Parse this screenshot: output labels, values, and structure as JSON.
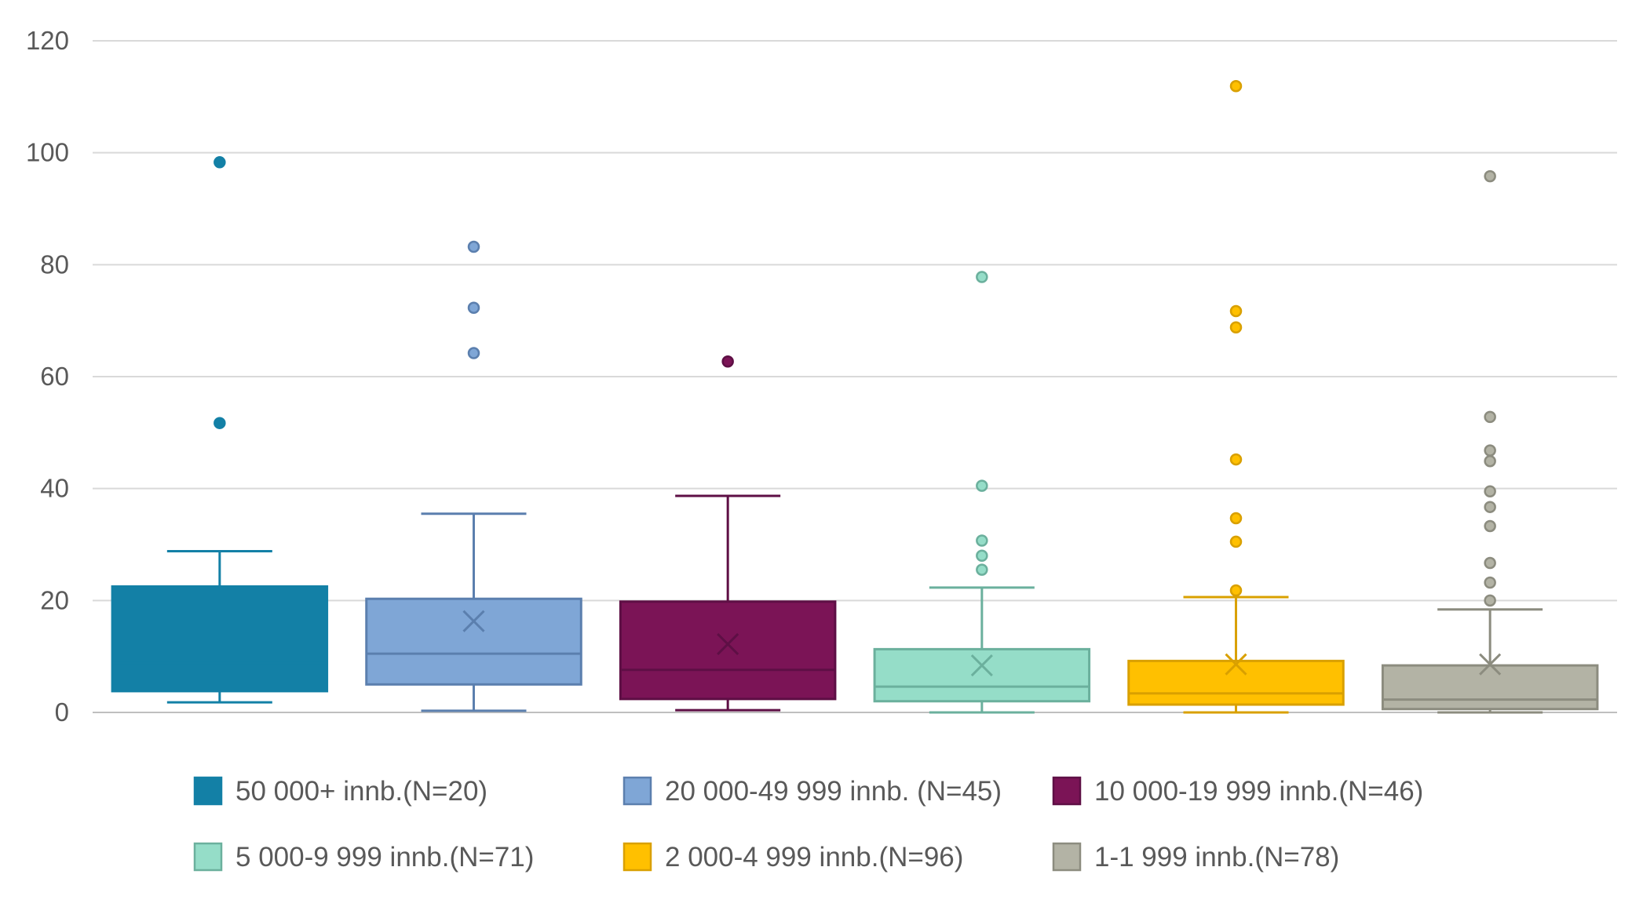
{
  "chart_data": {
    "type": "boxplot",
    "title": "",
    "xlabel": "",
    "ylabel": "",
    "ylim": [
      0,
      120
    ],
    "y_ticks": [
      0,
      20,
      40,
      60,
      80,
      100,
      120
    ],
    "y_tick_labels": [
      "0",
      "20",
      "40",
      "60",
      "80",
      "100",
      "120"
    ],
    "grid": "horizontal",
    "legend_position": "bottom",
    "series": [
      {
        "name": "50 000+ innb.(N=20)",
        "color": "#1380A6",
        "fill": "#1380A6",
        "whisker_low": 1.8,
        "q1": 3.8,
        "median": 8.8,
        "q3": 22.5,
        "whisker_high": 28.8,
        "mean": 17.6,
        "outliers": [
          51.7,
          98.3
        ]
      },
      {
        "name": "20 000-49 999 innb. (N=45)",
        "color": "#5B7FAE",
        "fill": "#7FA6D6",
        "whisker_low": 0.3,
        "q1": 5.0,
        "median": 10.5,
        "q3": 20.3,
        "whisker_high": 35.5,
        "mean": 16.3,
        "outliers": [
          64.2,
          72.3,
          83.2
        ]
      },
      {
        "name": "10 000-19 999 innb.(N=46)",
        "color": "#5E0F45",
        "fill": "#7B1456",
        "whisker_low": 0.4,
        "q1": 2.4,
        "median": 7.6,
        "q3": 19.8,
        "whisker_high": 38.7,
        "mean": 12.2,
        "outliers": [
          62.7
        ]
      },
      {
        "name": "5 000-9 999 innb.(N=71)",
        "color": "#6BB09D",
        "fill": "#95DDC8",
        "whisker_low": 0.0,
        "q1": 2.0,
        "median": 4.6,
        "q3": 11.3,
        "whisker_high": 22.3,
        "mean": 8.4,
        "outliers": [
          25.5,
          28.0,
          30.7,
          40.5,
          77.8
        ]
      },
      {
        "name": "2 000-4 999 innb.(N=96)",
        "color": "#D9A000",
        "fill": "#FFC000",
        "whisker_low": 0.0,
        "q1": 1.4,
        "median": 3.4,
        "q3": 9.2,
        "whisker_high": 20.6,
        "mean": 8.6,
        "outliers": [
          21.8,
          30.5,
          34.7,
          45.2,
          68.8,
          71.7,
          111.9
        ]
      },
      {
        "name": "1-1 999 innb.(N=78)",
        "color": "#8C8C7F",
        "fill": "#B3B3A5",
        "whisker_low": 0.0,
        "q1": 0.6,
        "median": 2.3,
        "q3": 8.4,
        "whisker_high": 18.4,
        "mean": 8.6,
        "outliers": [
          20.0,
          23.2,
          26.7,
          33.3,
          36.7,
          39.5,
          44.9,
          46.8,
          52.8,
          95.8
        ]
      }
    ]
  }
}
